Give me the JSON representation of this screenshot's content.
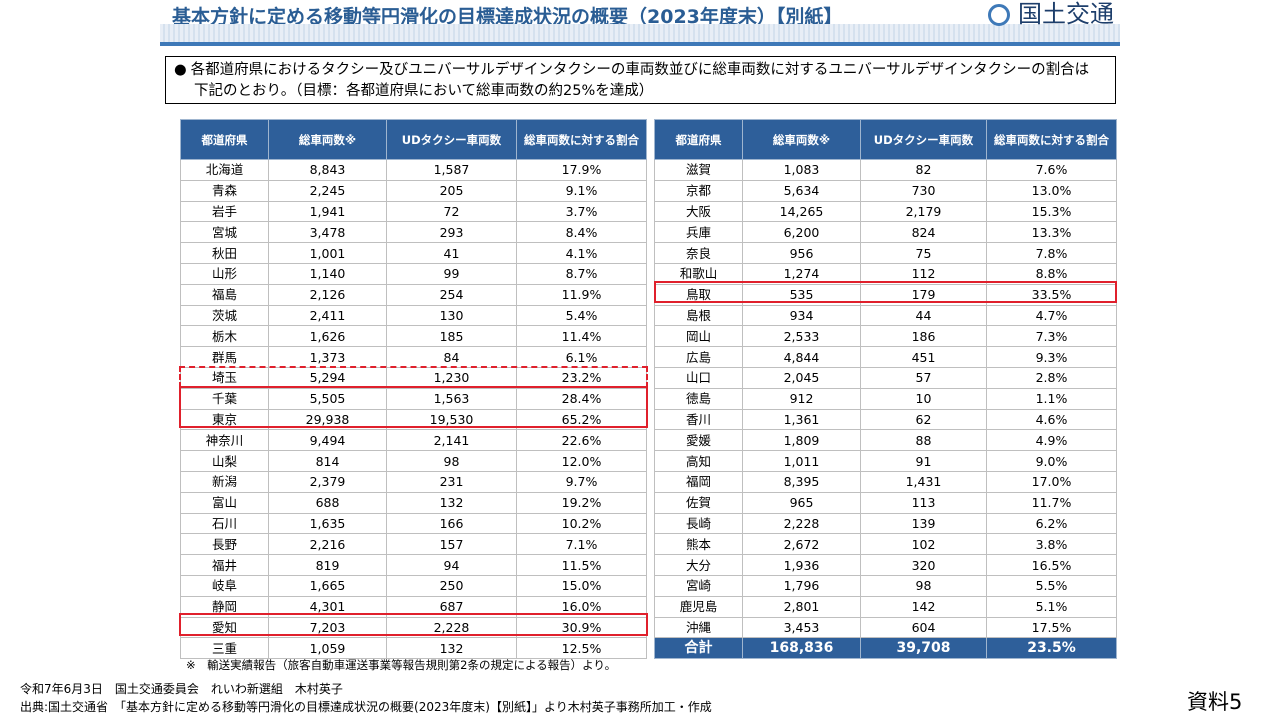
{
  "header": {
    "title": "基本方針に定める移動等円滑化の目標達成状況の概要（2023年度末）【別紙】",
    "logo_text": "国土交通"
  },
  "note": {
    "bullet": "●",
    "line1": "各都道府県におけるタクシー及びユニバーサルデザインタクシーの車両数並びに総車両数に対するユニバーサルデザインタクシーの割合は",
    "line2": "下記のとおり。（目標：各都道府県において総車両数の約25%を達成）"
  },
  "table": {
    "headers": [
      "都道府県",
      "総車両数※",
      "UDタクシー車両数",
      "総車両数に対する割合"
    ],
    "left_rows": [
      [
        "北海道",
        "8,843",
        "1,587",
        "17.9%"
      ],
      [
        "青森",
        "2,245",
        "205",
        "9.1%"
      ],
      [
        "岩手",
        "1,941",
        "72",
        "3.7%"
      ],
      [
        "宮城",
        "3,478",
        "293",
        "8.4%"
      ],
      [
        "秋田",
        "1,001",
        "41",
        "4.1%"
      ],
      [
        "山形",
        "1,140",
        "99",
        "8.7%"
      ],
      [
        "福島",
        "2,126",
        "254",
        "11.9%"
      ],
      [
        "茨城",
        "2,411",
        "130",
        "5.4%"
      ],
      [
        "栃木",
        "1,626",
        "185",
        "11.4%"
      ],
      [
        "群馬",
        "1,373",
        "84",
        "6.1%"
      ],
      [
        "埼玉",
        "5,294",
        "1,230",
        "23.2%"
      ],
      [
        "千葉",
        "5,505",
        "1,563",
        "28.4%"
      ],
      [
        "東京",
        "29,938",
        "19,530",
        "65.2%"
      ],
      [
        "神奈川",
        "9,494",
        "2,141",
        "22.6%"
      ],
      [
        "山梨",
        "814",
        "98",
        "12.0%"
      ],
      [
        "新潟",
        "2,379",
        "231",
        "9.7%"
      ],
      [
        "富山",
        "688",
        "132",
        "19.2%"
      ],
      [
        "石川",
        "1,635",
        "166",
        "10.2%"
      ],
      [
        "長野",
        "2,216",
        "157",
        "7.1%"
      ],
      [
        "福井",
        "819",
        "94",
        "11.5%"
      ],
      [
        "岐阜",
        "1,665",
        "250",
        "15.0%"
      ],
      [
        "静岡",
        "4,301",
        "687",
        "16.0%"
      ],
      [
        "愛知",
        "7,203",
        "2,228",
        "30.9%"
      ],
      [
        "三重",
        "1,059",
        "132",
        "12.5%"
      ]
    ],
    "right_rows": [
      [
        "滋賀",
        "1,083",
        "82",
        "7.6%"
      ],
      [
        "京都",
        "5,634",
        "730",
        "13.0%"
      ],
      [
        "大阪",
        "14,265",
        "2,179",
        "15.3%"
      ],
      [
        "兵庫",
        "6,200",
        "824",
        "13.3%"
      ],
      [
        "奈良",
        "956",
        "75",
        "7.8%"
      ],
      [
        "和歌山",
        "1,274",
        "112",
        "8.8%"
      ],
      [
        "鳥取",
        "535",
        "179",
        "33.5%"
      ],
      [
        "島根",
        "934",
        "44",
        "4.7%"
      ],
      [
        "岡山",
        "2,533",
        "186",
        "7.3%"
      ],
      [
        "広島",
        "4,844",
        "451",
        "9.3%"
      ],
      [
        "山口",
        "2,045",
        "57",
        "2.8%"
      ],
      [
        "徳島",
        "912",
        "10",
        "1.1%"
      ],
      [
        "香川",
        "1,361",
        "62",
        "4.6%"
      ],
      [
        "愛媛",
        "1,809",
        "88",
        "4.9%"
      ],
      [
        "高知",
        "1,011",
        "91",
        "9.0%"
      ],
      [
        "福岡",
        "8,395",
        "1,431",
        "17.0%"
      ],
      [
        "佐賀",
        "965",
        "113",
        "11.7%"
      ],
      [
        "長崎",
        "2,228",
        "139",
        "6.2%"
      ],
      [
        "熊本",
        "2,672",
        "102",
        "3.8%"
      ],
      [
        "大分",
        "1,936",
        "320",
        "16.5%"
      ],
      [
        "宮崎",
        "1,796",
        "98",
        "5.5%"
      ],
      [
        "鹿児島",
        "2,801",
        "142",
        "5.1%"
      ],
      [
        "沖縄",
        "3,453",
        "604",
        "17.5%"
      ]
    ],
    "total": [
      "合計",
      "168,836",
      "39,708",
      "23.5%"
    ]
  },
  "footnote": "※　輸送実績報告（旅客自動車運送事業等報告規則第2条の規定による報告）より。",
  "credit_line1": "令和7年6月3日　国土交通委員会　れいわ新選組　木村英子",
  "credit_line2": "出典:国土交通省　「基本方針に定める移動等円滑化の目標達成状況の概要(2023年度末)【別紙】」より木村英子事務所加工・作成",
  "doc_label": "資料5",
  "colors": {
    "header_bg": "#2e5f9a",
    "title": "#2a5d94",
    "highlight": "#e0202c"
  }
}
